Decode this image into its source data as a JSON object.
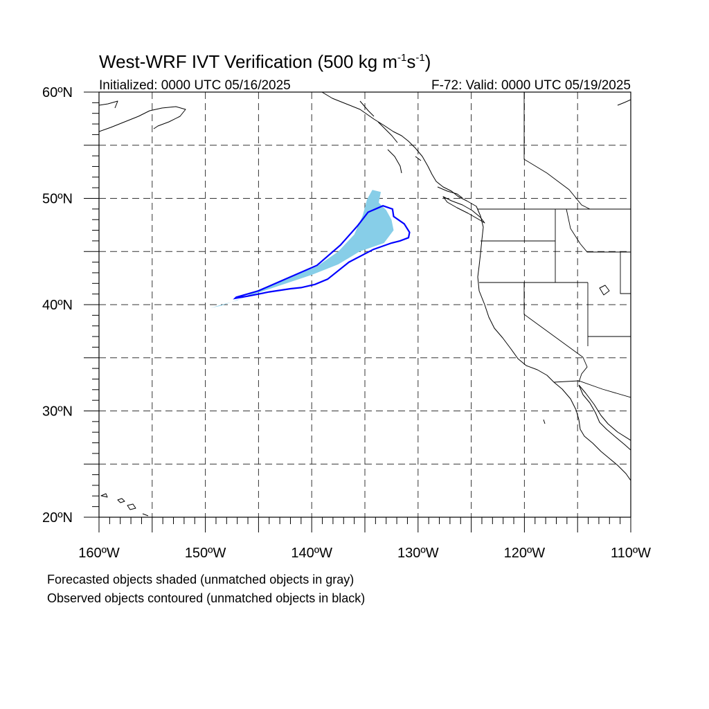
{
  "title": {
    "main": "West-WRF IVT Verification (500 kg m",
    "exp1": "-1",
    "mid": "s",
    "exp2": "-1",
    "close": ")"
  },
  "initialized": "Initialized: 0000 UTC 05/16/2025",
  "valid": "F-72: Valid: 0000 UTC 05/19/2025",
  "map": {
    "lon_range": [
      -160,
      -110
    ],
    "lat_range": [
      20,
      60
    ],
    "grid_lon_step": 5,
    "grid_lat_step": 5,
    "grid": "on",
    "forecast_fill_color": "#87CEE8",
    "observed_contour_color": "#0000FF"
  },
  "ticks": {
    "lat": [
      {
        "value": 60,
        "label": "60ºN"
      },
      {
        "value": 50,
        "label": "50ºN"
      },
      {
        "value": 40,
        "label": "40ºN"
      },
      {
        "value": 30,
        "label": "30ºN"
      },
      {
        "value": 20,
        "label": "20ºN"
      }
    ],
    "lon": [
      {
        "value": -160,
        "label": "160ºW"
      },
      {
        "value": -150,
        "label": "150ºW"
      },
      {
        "value": -140,
        "label": "140ºW"
      },
      {
        "value": -130,
        "label": "130ºW"
      },
      {
        "value": -120,
        "label": "120ºW"
      },
      {
        "value": -110,
        "label": "110ºW"
      }
    ]
  },
  "objects": {
    "forecast_polygon": [
      [
        -149.5,
        39.7
      ],
      [
        -147,
        40.4
      ],
      [
        -145,
        41.4
      ],
      [
        -142,
        42.6
      ],
      [
        -139.5,
        43.6
      ],
      [
        -137.5,
        45.0
      ],
      [
        -136.0,
        46.6
      ],
      [
        -135.2,
        48.4
      ],
      [
        -134.8,
        49.9
      ],
      [
        -134.3,
        50.8
      ],
      [
        -133.5,
        50.6
      ],
      [
        -133.7,
        49.6
      ],
      [
        -133.0,
        48.9
      ],
      [
        -132.5,
        48.0
      ],
      [
        -132.3,
        47.0
      ],
      [
        -133.2,
        45.8
      ],
      [
        -135.5,
        45.0
      ],
      [
        -137.5,
        43.8
      ],
      [
        -140,
        42.8
      ],
      [
        -143,
        41.8
      ],
      [
        -146,
        40.8
      ],
      [
        -148.5,
        39.9
      ]
    ],
    "observed_contour": [
      [
        -147.1,
        40.7
      ],
      [
        -145,
        41.3
      ],
      [
        -142.5,
        42.4
      ],
      [
        -139.5,
        43.7
      ],
      [
        -137.3,
        45.6
      ],
      [
        -135.7,
        47.4
      ],
      [
        -134.7,
        48.7
      ],
      [
        -133.3,
        49.3
      ],
      [
        -132.4,
        49.0
      ],
      [
        -132.3,
        48.3
      ],
      [
        -131.3,
        47.6
      ],
      [
        -130.8,
        46.8
      ],
      [
        -130.9,
        46.3
      ],
      [
        -131.7,
        46.0
      ],
      [
        -132.5,
        45.8
      ],
      [
        -134.2,
        45.2
      ],
      [
        -136.5,
        44.0
      ],
      [
        -138.5,
        42.4
      ],
      [
        -139.7,
        41.9
      ],
      [
        -141.0,
        41.6
      ],
      [
        -142.0,
        41.5
      ],
      [
        -144,
        41.2
      ],
      [
        -146.0,
        40.8
      ],
      [
        -147.2,
        40.6
      ]
    ]
  },
  "footer": {
    "line1": "Forecasted objects shaded (unmatched objects in gray)",
    "line2": "Observed objects contoured (unmatched objects in black)"
  }
}
